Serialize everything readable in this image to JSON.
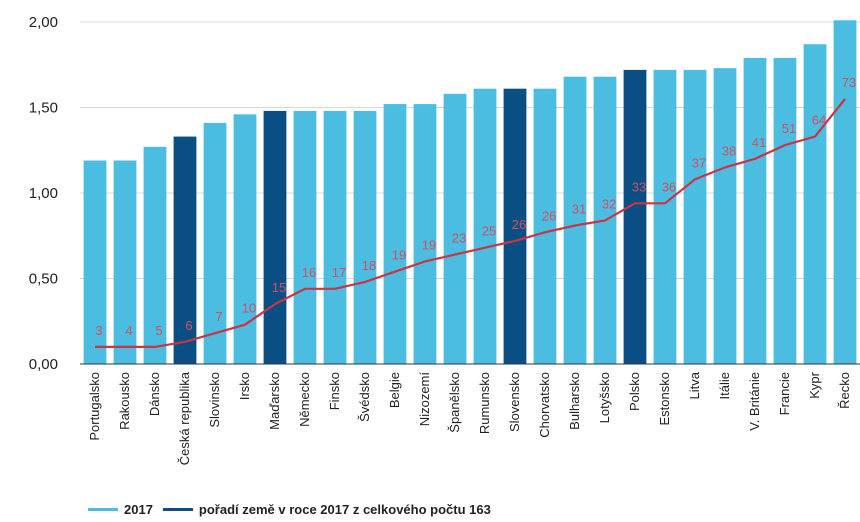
{
  "chart_data": {
    "type": "bar",
    "categories": [
      "Portugalsko",
      "Rakousko",
      "Dánsko",
      "Česká republika",
      "Slovinsko",
      "Irsko",
      "Maďarsko",
      "Německo",
      "Finsko",
      "Švédsko",
      "Belgie",
      "Nizozemí",
      "Španělsko",
      "Rumunsko",
      "Slovensko",
      "Chorvatsko",
      "Bulharsko",
      "Lotyšsko",
      "Polsko",
      "Estonsko",
      "Litva",
      "Itálie",
      "V. Británie",
      "Francie",
      "Kypr",
      "Řecko"
    ],
    "values": [
      1.19,
      1.19,
      1.27,
      1.33,
      1.41,
      1.46,
      1.48,
      1.48,
      1.48,
      1.48,
      1.52,
      1.52,
      1.58,
      1.61,
      1.61,
      1.61,
      1.68,
      1.68,
      1.72,
      1.72,
      1.72,
      1.73,
      1.79,
      1.79,
      1.87,
      2.01
    ],
    "highlighted": [
      "Česká republika",
      "Maďarsko",
      "Slovensko",
      "Polsko"
    ],
    "line_values": [
      0.1,
      0.1,
      0.1,
      0.13,
      0.18,
      0.23,
      0.35,
      0.44,
      0.44,
      0.48,
      0.54,
      0.6,
      0.64,
      0.68,
      0.72,
      0.77,
      0.81,
      0.84,
      0.94,
      0.94,
      1.08,
      1.15,
      1.2,
      1.28,
      1.33,
      1.55
    ],
    "rank_labels": [
      "3",
      "4",
      "5",
      "6",
      "7",
      "10",
      "15",
      "16",
      "17",
      "18",
      "19",
      "19",
      "23",
      "25",
      "26",
      "26",
      "31",
      "32",
      "33",
      "36",
      "37",
      "38",
      "41",
      "51",
      "64",
      "73"
    ],
    "yticks": [
      "0,00",
      "0,50",
      "1,00",
      "1,50",
      "2,00"
    ],
    "ylim": [
      0,
      2.0
    ],
    "title": "",
    "xlabel": "",
    "ylabel": "",
    "legend": [
      {
        "label": "2017",
        "color": "#4bbde0"
      },
      {
        "label": "pořadí země v roce 2017 z celkového počtu 163",
        "color": "#0a4f84"
      }
    ],
    "colors": {
      "bar": "#4bbde0",
      "bar_highlight": "#0a4f84",
      "line": "#cc3344",
      "rank_text": "#d05060"
    },
    "legend_position": "bottom-left",
    "grid": true
  }
}
